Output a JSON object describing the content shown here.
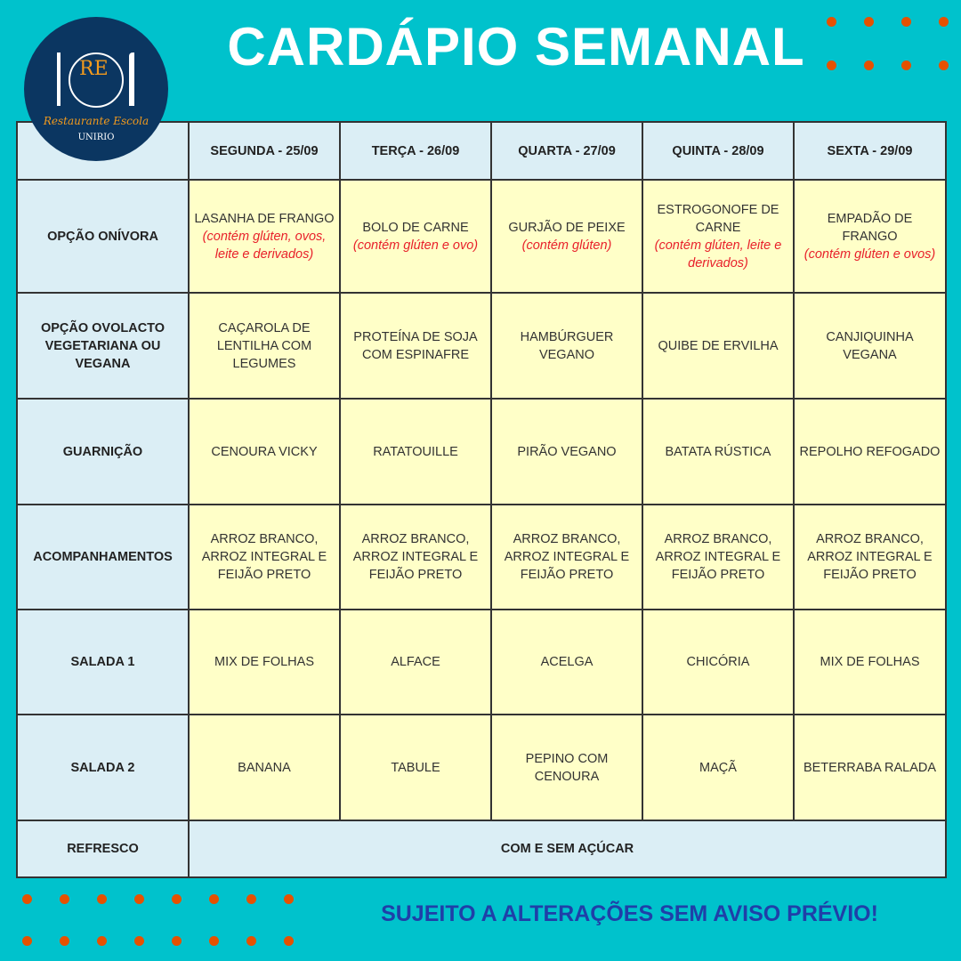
{
  "title": "CARDÁPIO SEMANAL",
  "logo": {
    "initials": "RE",
    "name": "Restaurante Escola",
    "org": "UNIRIO"
  },
  "columns": [
    "SEGUNDA - 25/09",
    "TERÇA - 26/09",
    "QUARTA - 27/09",
    "QUINTA - 28/09",
    "SEXTA - 29/09"
  ],
  "rows": [
    {
      "label": "OPÇÃO ONÍVORA",
      "cells": [
        {
          "text": "LASANHA DE FRANGO",
          "allergen": "(contém glúten, ovos, leite e derivados)"
        },
        {
          "text": "BOLO DE CARNE",
          "allergen": "(contém glúten e ovo)"
        },
        {
          "text": "GURJÃO DE PEIXE",
          "allergen": "(contém glúten)"
        },
        {
          "text": "ESTROGONOFE DE CARNE",
          "allergen": "(contém glúten, leite e derivados)"
        },
        {
          "text": "EMPADÃO DE FRANGO",
          "allergen": "(contém glúten e ovos)"
        }
      ]
    },
    {
      "label": "OPÇÃO OVOLACTO VEGETARIANA OU VEGANA",
      "cells": [
        {
          "text": "CAÇAROLA DE LENTILHA COM LEGUMES"
        },
        {
          "text": "PROTEÍNA DE SOJA COM ESPINAFRE"
        },
        {
          "text": "HAMBÚRGUER VEGANO"
        },
        {
          "text": "QUIBE DE ERVILHA"
        },
        {
          "text": "CANJIQUINHA VEGANA"
        }
      ]
    },
    {
      "label": "GUARNIÇÃO",
      "cells": [
        {
          "text": "CENOURA VICKY"
        },
        {
          "text": "RATATOUILLE"
        },
        {
          "text": "PIRÃO VEGANO"
        },
        {
          "text": "BATATA RÚSTICA"
        },
        {
          "text": "REPOLHO REFOGADO"
        }
      ]
    },
    {
      "label": "ACOMPANHAMENTOS",
      "cells": [
        {
          "text": "ARROZ BRANCO, ARROZ INTEGRAL E FEIJÃO PRETO"
        },
        {
          "text": "ARROZ BRANCO, ARROZ INTEGRAL E FEIJÃO PRETO"
        },
        {
          "text": "ARROZ BRANCO, ARROZ INTEGRAL E FEIJÃO PRETO"
        },
        {
          "text": "ARROZ BRANCO, ARROZ INTEGRAL E FEIJÃO PRETO"
        },
        {
          "text": "ARROZ BRANCO, ARROZ INTEGRAL E FEIJÃO PRETO"
        }
      ]
    },
    {
      "label": "SALADA 1",
      "cells": [
        {
          "text": "MIX DE FOLHAS"
        },
        {
          "text": "ALFACE"
        },
        {
          "text": "ACELGA"
        },
        {
          "text": "CHICÓRIA"
        },
        {
          "text": "MIX DE FOLHAS"
        }
      ]
    },
    {
      "label": "SALADA 2",
      "cells": [
        {
          "text": "BANANA"
        },
        {
          "text": "TABULE"
        },
        {
          "text": "PEPINO COM CENOURA"
        },
        {
          "text": "MAÇÃ"
        },
        {
          "text": "BETERRABA RALADA"
        }
      ]
    }
  ],
  "refresco": {
    "label": "REFRESCO",
    "value": "COM E SEM AÇÚCAR"
  },
  "footer": "SUJEITO A ALTERAÇÕES SEM AVISO PRÉVIO!",
  "colors": {
    "background": "#00c2cc",
    "dots": "#e65100",
    "header_cell": "#dbeef5",
    "body_cell": "#ffffc8",
    "allergen": "#e8202a",
    "footer_text": "#1f3fa8",
    "logo": "#0b3661"
  }
}
